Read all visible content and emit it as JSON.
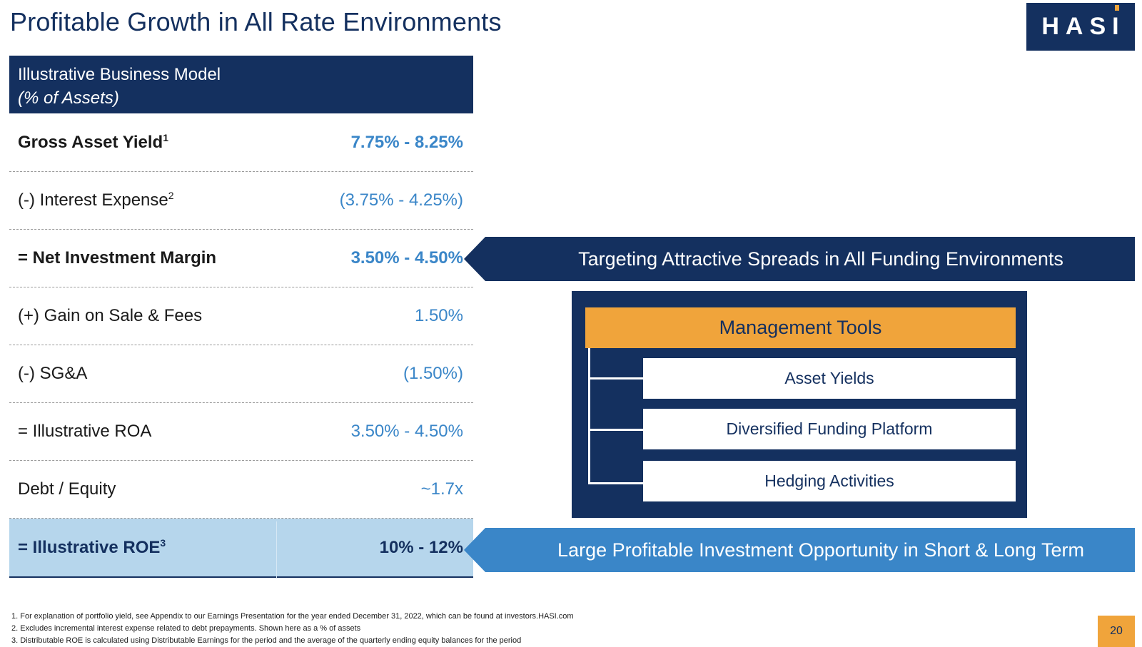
{
  "title": "Profitable Growth in All Rate Environments",
  "logo": "HASI",
  "table": {
    "header_line1": "Illustrative Business Model",
    "header_line2": "(% of Assets)",
    "rows": [
      {
        "label": "Gross Asset Yield",
        "sup": "1",
        "value": "7.75% - 8.25%"
      },
      {
        "label": "(-) Interest Expense",
        "sup": "2",
        "value": "(3.75% - 4.25%)"
      },
      {
        "label": "= Net Investment Margin",
        "sup": "",
        "value": "3.50% - 4.50%"
      },
      {
        "label": "(+) Gain on Sale & Fees",
        "sup": "",
        "value": "1.50%"
      },
      {
        "label": "(-) SG&A",
        "sup": "",
        "value": "(1.50%)"
      },
      {
        "label": "= Illustrative ROA",
        "sup": "",
        "value": "3.50% - 4.50%"
      },
      {
        "label": "Debt / Equity",
        "sup": "",
        "value": "~1.7x"
      },
      {
        "label": "= Illustrative ROE",
        "sup": "3",
        "value": "10% - 12%"
      }
    ]
  },
  "callouts": {
    "spreads": "Targeting Attractive Spreads in All Funding Environments",
    "opportunity": "Large Profitable Investment Opportunity in Short & Long Term"
  },
  "management_tools": {
    "header": "Management Tools",
    "items": [
      "Asset Yields",
      "Diversified Funding Platform",
      "Hedging Activities"
    ]
  },
  "footnotes": [
    "1.  For explanation of portfolio yield, see Appendix to our Earnings Presentation for the year ended December 31, 2022, which can be found at investors.HASI.com",
    "2.  Excludes incremental interest expense related to debt prepayments. Shown here as a % of assets",
    "3.  Distributable ROE is calculated using Distributable Earnings for the period and the average of the quarterly ending equity balances for the period"
  ],
  "page_number": "20",
  "colors": {
    "navy": "#14305f",
    "blue": "#3a86c8",
    "light_blue": "#b6d6ec",
    "orange": "#f0a43b"
  }
}
